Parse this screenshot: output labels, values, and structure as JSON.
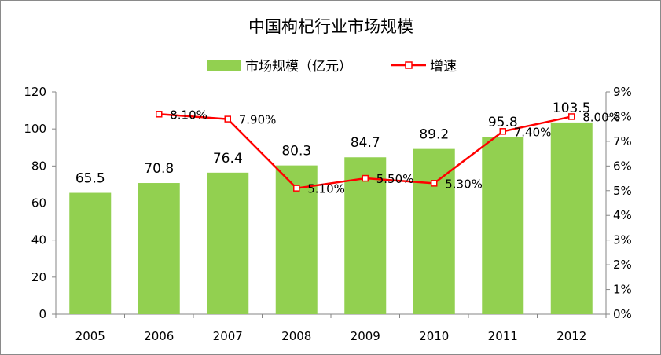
{
  "chart_data": {
    "type": "bar",
    "title": "中国枸杞行业市场规模",
    "categories": [
      "2005",
      "2006",
      "2007",
      "2008",
      "2009",
      "2010",
      "2011",
      "2012"
    ],
    "series": [
      {
        "name": "市场规模（亿元）",
        "type": "bar",
        "axis": "left",
        "values": [
          65.5,
          70.8,
          76.4,
          80.3,
          84.7,
          89.2,
          95.8,
          103.5
        ],
        "labels": [
          "65.5",
          "70.8",
          "76.4",
          "80.3",
          "84.7",
          "89.2",
          "95.8",
          "103.5"
        ],
        "color": "#92d050"
      },
      {
        "name": "增速",
        "type": "line",
        "axis": "right",
        "values": [
          null,
          8.1,
          7.9,
          5.1,
          5.5,
          5.3,
          7.4,
          8.0
        ],
        "labels": [
          null,
          "8.10%",
          "7.90%",
          "5.10%",
          "5.50%",
          "5.30%",
          "7.40%",
          "8.00%"
        ],
        "color": "#ff0000"
      }
    ],
    "y_left": {
      "ylim": [
        0,
        120
      ],
      "ticks": [
        "0",
        "20",
        "40",
        "60",
        "80",
        "100",
        "120"
      ]
    },
    "y_right": {
      "ylim": [
        0,
        9
      ],
      "ticks": [
        "0%",
        "1%",
        "2%",
        "3%",
        "4%",
        "5%",
        "6%",
        "7%",
        "8%",
        "9%"
      ]
    },
    "grid": false,
    "legend": "top-center"
  }
}
